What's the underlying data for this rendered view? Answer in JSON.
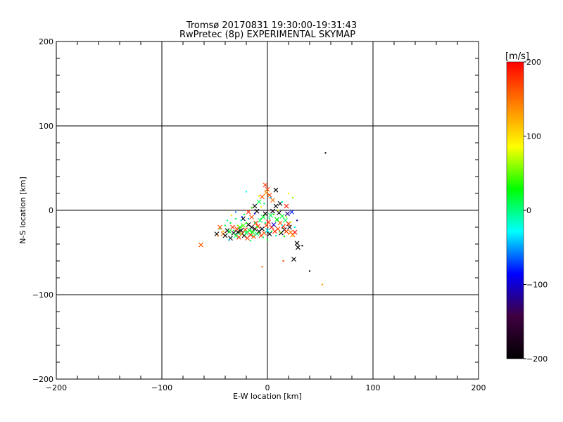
{
  "chart_data": {
    "type": "scatter",
    "title": "Tromsø 20170831 19:30:00-19:31:43",
    "subtitle": "RwPretec (8p) EXPERIMENTAL SKYMAP",
    "xlabel": "E-W location [km]",
    "ylabel": "N-S location [km]",
    "xlim": [
      -200,
      200
    ],
    "ylim": [
      -200,
      200
    ],
    "xticks": [
      -200,
      -100,
      0,
      100,
      200
    ],
    "yticks": [
      -200,
      -100,
      0,
      100,
      200
    ],
    "xtick_labels": [
      "−200",
      "−100",
      "0",
      "100",
      "200"
    ],
    "ytick_labels": [
      "−200",
      "−100",
      "0",
      "100",
      "200"
    ],
    "grid": true,
    "colorbar": {
      "label": "[m/s]",
      "range": [
        -200,
        200
      ],
      "ticks": [
        200,
        100,
        0,
        -100,
        -200
      ],
      "tick_labels": [
        "200",
        "100",
        "0",
        "−100",
        "−200"
      ],
      "stops": [
        "#ff0000",
        "#ff8000",
        "#ffff00",
        "#00ff00",
        "#00ffff",
        "#0000ff",
        "#400040",
        "#000000"
      ]
    },
    "series": [
      {
        "name": "crosses",
        "marker": "x",
        "points": [
          [
            -63,
            -41,
            160
          ],
          [
            -48,
            -28,
            -200
          ],
          [
            -45,
            -20,
            170
          ],
          [
            -42,
            -28,
            150
          ],
          [
            -40,
            -30,
            -200
          ],
          [
            -38,
            -24,
            -180
          ],
          [
            -36,
            -25,
            20
          ],
          [
            -35,
            -33,
            -200
          ],
          [
            -33,
            -20,
            180
          ],
          [
            -32,
            -27,
            -190
          ],
          [
            -30,
            -30,
            10
          ],
          [
            -29,
            -22,
            170
          ],
          [
            -28,
            -26,
            -200
          ],
          [
            -27,
            -32,
            180
          ],
          [
            -26,
            -20,
            30
          ],
          [
            -25,
            -24,
            -200
          ],
          [
            -24,
            -28,
            150
          ],
          [
            -23,
            -18,
            40
          ],
          [
            -22,
            -30,
            -200
          ],
          [
            -21,
            -23,
            180
          ],
          [
            -20,
            -27,
            10
          ],
          [
            -19,
            -33,
            170
          ],
          [
            -18,
            -17,
            -200
          ],
          [
            -17,
            -24,
            20
          ],
          [
            -16,
            -29,
            190
          ],
          [
            -15,
            -20,
            -180
          ],
          [
            -14,
            -26,
            30
          ],
          [
            -13,
            -31,
            160
          ],
          [
            -12,
            -22,
            -200
          ],
          [
            -11,
            -15,
            180
          ],
          [
            -10,
            -28,
            0
          ],
          [
            -9,
            -19,
            170
          ],
          [
            -8,
            -25,
            -200
          ],
          [
            -7,
            -12,
            10
          ],
          [
            -6,
            -30,
            180
          ],
          [
            -5,
            -22,
            -190
          ],
          [
            -4,
            -8,
            20
          ],
          [
            -3,
            -27,
            160
          ],
          [
            -2,
            -4,
            -200
          ],
          [
            -1,
            -18,
            170
          ],
          [
            0,
            -24,
            -30
          ],
          [
            1,
            -14,
            180
          ],
          [
            2,
            -28,
            -200
          ],
          [
            3,
            -6,
            10
          ],
          [
            4,
            -20,
            190
          ],
          [
            5,
            -1,
            -180
          ],
          [
            6,
            -17,
            -100
          ],
          [
            7,
            -25,
            180
          ],
          [
            8,
            5,
            -200
          ],
          [
            9,
            -11,
            30
          ],
          [
            10,
            -22,
            170
          ],
          [
            11,
            -3,
            -200
          ],
          [
            12,
            -15,
            160
          ],
          [
            13,
            -27,
            -190
          ],
          [
            14,
            -7,
            20
          ],
          [
            15,
            -19,
            180
          ],
          [
            16,
            -23,
            -200
          ],
          [
            17,
            -12,
            10
          ],
          [
            18,
            -25,
            170
          ],
          [
            19,
            -4,
            -120
          ],
          [
            20,
            -16,
            180
          ],
          [
            21,
            -20,
            -200
          ],
          [
            22,
            -26,
            150
          ],
          [
            23,
            -2,
            -80
          ],
          [
            24,
            -29,
            160
          ],
          [
            26,
            -26,
            190
          ],
          [
            28,
            -39,
            -200
          ],
          [
            29,
            -44,
            -200
          ],
          [
            25,
            -58,
            -200
          ],
          [
            -2,
            30,
            180
          ],
          [
            0,
            25,
            170
          ],
          [
            8,
            24,
            -200
          ],
          [
            -5,
            16,
            160
          ],
          [
            -1,
            21,
            130
          ],
          [
            2,
            18,
            170
          ],
          [
            -12,
            5,
            -200
          ],
          [
            -18,
            -2,
            180
          ],
          [
            -10,
            -1,
            -200
          ],
          [
            -15,
            -8,
            170
          ],
          [
            -8,
            10,
            10
          ],
          [
            5,
            12,
            150
          ],
          [
            12,
            8,
            -200
          ],
          [
            18,
            5,
            190
          ],
          [
            -23,
            -10,
            -200
          ]
        ]
      },
      {
        "name": "dots",
        "marker": "dot",
        "points": [
          [
            55,
            68,
            -200
          ],
          [
            -5,
            -67,
            160
          ],
          [
            15,
            -60,
            170
          ],
          [
            33,
            -42,
            -200
          ],
          [
            40,
            -72,
            -200
          ],
          [
            52,
            -88,
            130
          ],
          [
            -20,
            22,
            -30
          ],
          [
            20,
            20,
            90
          ],
          [
            24,
            15,
            60
          ],
          [
            -8,
            17,
            80
          ],
          [
            -3,
            8,
            0
          ],
          [
            3,
            15,
            -50
          ],
          [
            -15,
            3,
            40
          ],
          [
            -30,
            -10,
            10
          ],
          [
            -35,
            -15,
            20
          ],
          [
            -25,
            -12,
            -20
          ],
          [
            -20,
            -15,
            30
          ],
          [
            -40,
            -18,
            10
          ],
          [
            -45,
            -22,
            40
          ],
          [
            -38,
            -12,
            0
          ],
          [
            -28,
            -18,
            60
          ],
          [
            -22,
            -5,
            20
          ],
          [
            -18,
            -10,
            -40
          ],
          [
            -12,
            -15,
            10
          ],
          [
            -10,
            -20,
            30
          ],
          [
            -6,
            -10,
            20
          ],
          [
            -2,
            -15,
            0
          ],
          [
            2,
            -10,
            10
          ],
          [
            6,
            -5,
            40
          ],
          [
            10,
            -12,
            20
          ],
          [
            14,
            -18,
            -30
          ],
          [
            18,
            -8,
            60
          ],
          [
            22,
            -14,
            80
          ],
          [
            26,
            -20,
            -20
          ],
          [
            -32,
            -24,
            10
          ],
          [
            -26,
            -28,
            30
          ],
          [
            -20,
            -25,
            20
          ],
          [
            -14,
            -30,
            0
          ],
          [
            -8,
            -27,
            40
          ],
          [
            -4,
            -32,
            10
          ],
          [
            4,
            -25,
            20
          ],
          [
            8,
            -30,
            -10
          ],
          [
            12,
            -26,
            60
          ],
          [
            16,
            -31,
            30
          ],
          [
            -42,
            -25,
            120
          ],
          [
            -47,
            -30,
            150
          ],
          [
            -36,
            -35,
            -40
          ],
          [
            -16,
            -36,
            10
          ],
          [
            0,
            -35,
            20
          ],
          [
            20,
            -28,
            140
          ],
          [
            24,
            -30,
            110
          ],
          [
            -24,
            -8,
            -80
          ],
          [
            -30,
            -2,
            -60
          ],
          [
            -6,
            4,
            90
          ],
          [
            10,
            0,
            70
          ],
          [
            14,
            10,
            -10
          ],
          [
            -34,
            -6,
            100
          ],
          [
            28,
            -12,
            -120
          ],
          [
            -12,
            -4,
            -100
          ]
        ]
      }
    ]
  }
}
